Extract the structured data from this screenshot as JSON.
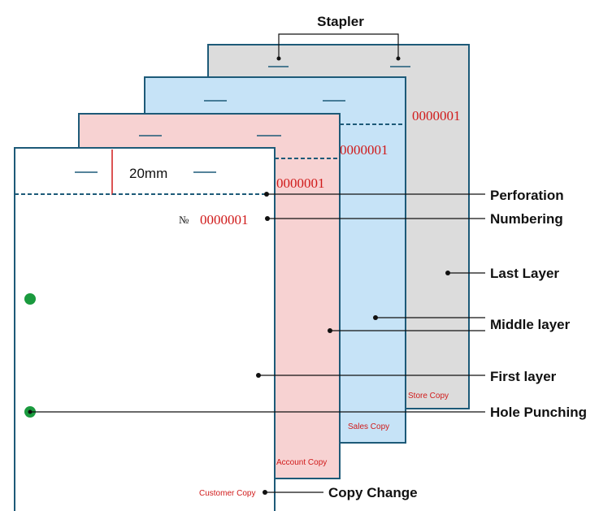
{
  "labels": {
    "stapler": "Stapler",
    "perforation": "Perforation",
    "numbering": "Numbering",
    "last_layer": "Last Layer",
    "middle_layer": "Middle layer",
    "first_layer": "First layer",
    "hole_punching": "Hole Punching",
    "copy_change": "Copy Change"
  },
  "sheets": {
    "store": {
      "copy_label": "Store Copy",
      "number": "0000001",
      "color": "#dcdcdc"
    },
    "sales": {
      "copy_label": "Sales Copy",
      "number": "0000001",
      "color": "#c6e3f7"
    },
    "account": {
      "copy_label": "Account Copy",
      "number": "0000001",
      "color": "#f7d2d2"
    },
    "customer": {
      "copy_label": "Customer Copy",
      "number": "0000001",
      "number_symbol": "№",
      "color": "#ffffff"
    }
  },
  "dimension": "20mm",
  "colors": {
    "border": "#1d5a78",
    "accent_red": "#d01a1a",
    "hole_green": "#1a9a3e"
  }
}
